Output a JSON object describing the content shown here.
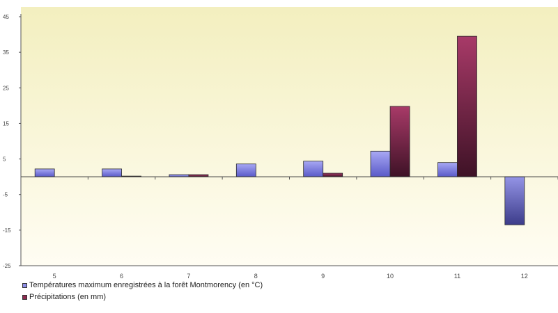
{
  "chart_data": {
    "type": "bar",
    "categories": [
      "5",
      "6",
      "7",
      "8",
      "9",
      "10",
      "11",
      "12"
    ],
    "series": [
      {
        "name": "Températures maximum enregistrées à la forêt Montmorency (en °C)",
        "values": [
          2.2,
          2.2,
          0.6,
          3.6,
          4.4,
          7.2,
          4.0,
          -13.5
        ],
        "color": "#8e8ee8"
      },
      {
        "name": "Précipitations (en mm)",
        "values": [
          0,
          0.2,
          0.6,
          0,
          1.0,
          19.8,
          39.5,
          0
        ],
        "color": "#8e2a50"
      }
    ],
    "ylim": [
      -25,
      45
    ],
    "yticks": [
      "45",
      "35",
      "25",
      "15",
      "5",
      "-5",
      "-15",
      "-25"
    ],
    "ytick_values": [
      45,
      35,
      25,
      15,
      5,
      -5,
      -15,
      -25
    ],
    "grid": false,
    "legend_position": "bottom-left",
    "title": "",
    "xlabel": "",
    "ylabel": ""
  }
}
